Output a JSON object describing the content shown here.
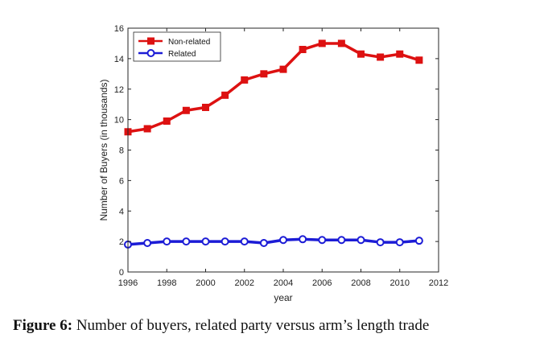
{
  "chart_data": {
    "type": "line",
    "title": "",
    "xlabel": "year",
    "ylabel": "Number of Buyers (in thousands)",
    "xlim": [
      1996,
      2012
    ],
    "ylim": [
      0,
      16
    ],
    "xticks": [
      1996,
      1998,
      2000,
      2002,
      2004,
      2006,
      2008,
      2010,
      2012
    ],
    "yticks": [
      0,
      2,
      4,
      6,
      8,
      10,
      12,
      14,
      16
    ],
    "grid": false,
    "legend_position": "top-left",
    "x": [
      1996,
      1997,
      1998,
      1999,
      2000,
      2001,
      2002,
      2003,
      2004,
      2005,
      2006,
      2007,
      2008,
      2009,
      2010,
      2011
    ],
    "series": [
      {
        "name": "Non-related",
        "color": "#dd1111",
        "marker": "square",
        "values": [
          9.2,
          9.4,
          9.9,
          10.6,
          10.8,
          11.6,
          12.6,
          13.0,
          13.3,
          14.6,
          15.0,
          15.0,
          14.3,
          14.1,
          14.3,
          13.9
        ]
      },
      {
        "name": "Related",
        "color": "#1c1cd6",
        "marker": "circle",
        "values": [
          1.8,
          1.9,
          2.0,
          2.0,
          2.0,
          2.0,
          2.0,
          1.9,
          2.1,
          2.15,
          2.1,
          2.1,
          2.1,
          1.95,
          1.95,
          2.05
        ]
      }
    ]
  },
  "caption": {
    "label": "Figure 6:",
    "text": "Number of buyers, related party versus arm’s length trade"
  }
}
